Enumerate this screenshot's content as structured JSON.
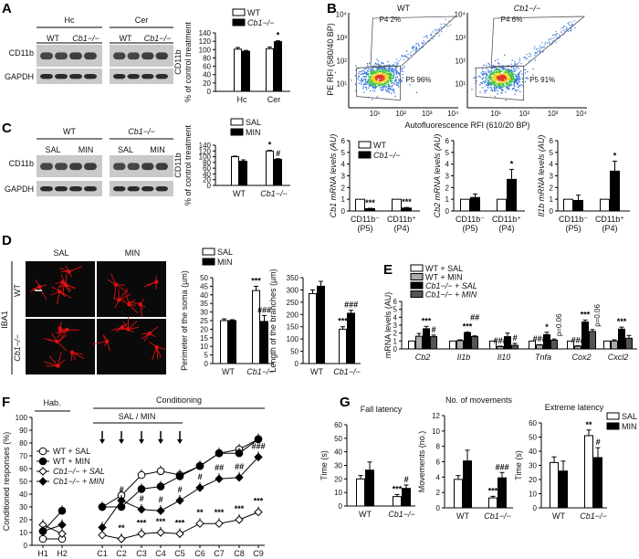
{
  "panels": {
    "A": "A",
    "B": "B",
    "C": "C",
    "D": "D",
    "E": "E",
    "F": "F",
    "G": "G"
  },
  "blot_A": {
    "groups": [
      "Hc",
      "Cer"
    ],
    "genotypes": [
      "WT",
      "Cb1−/−",
      "WT",
      "Cb1−/−"
    ],
    "rows": [
      "CD11b",
      "GAPDH"
    ]
  },
  "blot_C": {
    "groups": [
      "WT",
      "Cb1−/−"
    ],
    "treatments": [
      "SAL",
      "MIN",
      "SAL",
      "MIN"
    ],
    "rows": [
      "CD11b",
      "GAPDH"
    ]
  },
  "flow_B": {
    "plots": [
      {
        "title": "WT",
        "p4": "P4 2%",
        "p5": "P5 96%"
      },
      {
        "title": "Cb1−/−",
        "p4": "P4 6%",
        "p5": "P5 91%"
      }
    ],
    "ylabel": "PE RFI (580/40 BP)",
    "xlabel": "Autofluorescence RFI (610/20 BP)",
    "ticks": [
      "10¹",
      "10²",
      "10³",
      "10⁴"
    ]
  },
  "micro_D": {
    "cols": [
      "SAL",
      "MIN"
    ],
    "rows": [
      "WT",
      "Cb1−/−"
    ],
    "stain": "IBA1",
    "colors": {
      "signal": "#e01010",
      "background": "#0a0a0a"
    }
  },
  "f_labels": {
    "hab": "Hab.",
    "conditioning": "Conditioning",
    "treatment": "SAL / MIN"
  },
  "chart_data": [
    {
      "id": "A",
      "type": "bar",
      "ylabel": [
        "CD11b",
        "% of control treatment"
      ],
      "ylim": [
        0,
        140
      ],
      "ytick": 20,
      "categories": [
        "Hc",
        "Cer"
      ],
      "series": [
        {
          "name": "WT",
          "values": [
            101,
            102
          ],
          "errors": [
            4,
            4
          ],
          "fill": "#ffffff"
        },
        {
          "name": "Cb1−/−",
          "values": [
            96,
            119
          ],
          "errors": [
            2,
            2
          ],
          "fill": "#000000"
        }
      ],
      "annotations": [
        {
          "cat": 1,
          "series": 1,
          "text": "*"
        }
      ],
      "legend": "top"
    },
    {
      "id": "C",
      "type": "bar",
      "ylabel": [
        "CD11b",
        "% of control treatment"
      ],
      "ylim": [
        0,
        140
      ],
      "ytick": 20,
      "categories": [
        "WT",
        "Cb1−/−"
      ],
      "series": [
        {
          "name": "SAL",
          "values": [
            100,
            120
          ],
          "errors": [
            2,
            2
          ],
          "fill": "#ffffff"
        },
        {
          "name": "MIN",
          "values": [
            84,
            91
          ],
          "errors": [
            5,
            2
          ],
          "fill": "#000000"
        }
      ],
      "annotations": [
        {
          "cat": 1,
          "series": 0,
          "text": "*"
        },
        {
          "cat": 1,
          "series": 1,
          "text": "#"
        }
      ],
      "legend": "top"
    },
    {
      "id": "B-Cb1",
      "type": "bar",
      "ylabel": [
        "Cb1 mRNA levels (AU)"
      ],
      "ylim": [
        0,
        6
      ],
      "ytick": 1,
      "categories": [
        "CD11b⁻\n(P5)",
        "CD11b⁺\n(P4)"
      ],
      "series": [
        {
          "name": "WT",
          "values": [
            1,
            1
          ],
          "errors": [
            0,
            0
          ],
          "fill": "#ffffff"
        },
        {
          "name": "Cb1−/−",
          "values": [
            0.2,
            0.25
          ],
          "errors": [
            0.03,
            0.05
          ],
          "fill": "#000000"
        }
      ],
      "annotations": [
        {
          "cat": 0,
          "series": 1,
          "text": "***"
        },
        {
          "cat": 1,
          "series": 1,
          "text": "***"
        }
      ],
      "legend": "top-left"
    },
    {
      "id": "B-Cb2",
      "type": "bar",
      "ylabel": [
        "Cb2 mRNA levels (AU)"
      ],
      "ylim": [
        0,
        6
      ],
      "ytick": 1,
      "categories": [
        "CD11b⁻\n(P5)",
        "CD11b⁺\n(P4)"
      ],
      "series": [
        {
          "name": "WT",
          "values": [
            1,
            1
          ],
          "errors": [
            0,
            0
          ],
          "fill": "#ffffff"
        },
        {
          "name": "Cb1−/−",
          "values": [
            1.15,
            2.7
          ],
          "errors": [
            0.3,
            0.85
          ],
          "fill": "#000000"
        }
      ],
      "annotations": [
        {
          "cat": 1,
          "series": 1,
          "text": "*"
        }
      ]
    },
    {
      "id": "B-Il1b",
      "type": "bar",
      "ylabel": [
        "Il1b mRNA levels (AU)"
      ],
      "ylim": [
        0,
        6
      ],
      "ytick": 1,
      "categories": [
        "CD11b⁻\n(P5)",
        "CD11b⁺\n(P4)"
      ],
      "series": [
        {
          "name": "WT",
          "values": [
            1,
            1
          ],
          "errors": [
            0,
            0
          ],
          "fill": "#ffffff"
        },
        {
          "name": "Cb1−/−",
          "values": [
            0.9,
            3.4
          ],
          "errors": [
            0.45,
            0.85
          ],
          "fill": "#000000"
        }
      ],
      "annotations": [
        {
          "cat": 1,
          "series": 1,
          "text": "*"
        }
      ]
    },
    {
      "id": "D-soma",
      "type": "bar",
      "ylabel": [
        "Perimeter of the soma (µm)"
      ],
      "ylim": [
        0,
        50
      ],
      "ytick": 5,
      "categories": [
        "WT",
        "Cb1−/−"
      ],
      "series": [
        {
          "name": "SAL",
          "values": [
            25,
            42.5
          ],
          "errors": [
            1,
            2.5
          ],
          "fill": "#ffffff"
        },
        {
          "name": "MIN",
          "values": [
            25,
            24.5
          ],
          "errors": [
            0.5,
            3.5
          ],
          "fill": "#000000"
        }
      ],
      "annotations": [
        {
          "cat": 1,
          "series": 0,
          "text": "***"
        },
        {
          "cat": 1,
          "series": 1,
          "text": "###"
        }
      ],
      "legend": "top"
    },
    {
      "id": "D-branches",
      "type": "bar",
      "ylabel": [
        "Length of the branches (µm)"
      ],
      "ylim": [
        0,
        350
      ],
      "ytick": 50,
      "categories": [
        "WT",
        "Cb1−/−"
      ],
      "series": [
        {
          "name": "SAL",
          "values": [
            285,
            140
          ],
          "errors": [
            15,
            10
          ],
          "fill": "#ffffff"
        },
        {
          "name": "MIN",
          "values": [
            315,
            205
          ],
          "errors": [
            20,
            12
          ],
          "fill": "#000000"
        }
      ],
      "annotations": [
        {
          "cat": 1,
          "series": 0,
          "text": "***"
        },
        {
          "cat": 1,
          "series": 1,
          "text": "###"
        }
      ]
    },
    {
      "id": "E",
      "type": "bar",
      "ylabel": [
        "mRNA levels (AU)"
      ],
      "ylim": [
        0,
        6
      ],
      "ytick": 1,
      "categories": [
        "Cb2",
        "Il1b",
        "Il10",
        "Tnfa",
        "Cox2",
        "Cxcl2"
      ],
      "series": [
        {
          "name": "WT + SAL",
          "values": [
            1,
            1,
            1,
            1,
            1,
            1
          ],
          "errors": [
            0,
            0,
            0,
            0,
            0,
            0
          ],
          "fill": "#ffffff"
        },
        {
          "name": "WT + MIN",
          "values": [
            1.6,
            1.05,
            0.3,
            0.5,
            0.35,
            1.0
          ],
          "errors": [
            0.35,
            0.1,
            0.05,
            0.05,
            0.05,
            0.15
          ],
          "fill": "#aaaaaa"
        },
        {
          "name": "Cb1−/− + SAL",
          "values": [
            2.55,
            2.05,
            1.55,
            1.8,
            3.4,
            2.5
          ],
          "errors": [
            0.3,
            0.08,
            0.45,
            0.3,
            0.25,
            0.25
          ],
          "fill": "#000000"
        },
        {
          "name": "Cb1−/− + MIN",
          "values": [
            1.55,
            1.55,
            0.45,
            1.1,
            2.2,
            1.35
          ],
          "errors": [
            0.2,
            0.1,
            0.25,
            0.15,
            0.25,
            0.35
          ],
          "fill": "#555555"
        }
      ],
      "annotations": [
        {
          "cat": 0,
          "series": 2,
          "text": "***"
        },
        {
          "cat": 0,
          "series": 3,
          "text": "#"
        },
        {
          "cat": 1,
          "series": 2,
          "text": "***"
        },
        {
          "cat": 1,
          "series": 3,
          "text": "##"
        },
        {
          "cat": 2,
          "series": 1,
          "text": "###"
        },
        {
          "cat": 2,
          "series": 3,
          "text": "#"
        },
        {
          "cat": 3,
          "series": 1,
          "text": "###"
        },
        {
          "cat": 3,
          "series": 2,
          "text": "*"
        },
        {
          "cat": 3,
          "series": 3,
          "text": "p=0.06"
        },
        {
          "cat": 4,
          "series": 1,
          "text": "###"
        },
        {
          "cat": 4,
          "series": 2,
          "text": "***"
        },
        {
          "cat": 4,
          "series": 3,
          "text": "p=0.06"
        },
        {
          "cat": 5,
          "series": 2,
          "text": "***"
        }
      ],
      "legend": "top-left"
    },
    {
      "id": "F",
      "type": "line",
      "ylabel": "Conditioned responses (%)",
      "ylim": [
        0,
        100
      ],
      "ytick": 10,
      "x": [
        "H1",
        "H2",
        "C1",
        "C2",
        "C3",
        "C4",
        "C5",
        "C6",
        "C7",
        "C8",
        "C9"
      ],
      "series": [
        {
          "name": "WT + SAL",
          "marker": "circle-open",
          "values": [
            5,
            5,
            30,
            39,
            55,
            58,
            55,
            62,
            72,
            75,
            83
          ]
        },
        {
          "name": "WT + MIN",
          "marker": "circle-filled",
          "values": [
            11,
            27,
            30,
            30,
            44,
            46,
            54,
            62,
            72,
            72,
            83
          ]
        },
        {
          "name": "Cb1−/− + SAL",
          "marker": "diamond-open",
          "values": [
            16,
            9,
            8,
            5,
            9,
            10,
            9,
            17,
            17,
            20,
            26
          ]
        },
        {
          "name": "Cb1−/− + MIN",
          "marker": "diamond-filled",
          "values": [
            11,
            16,
            14,
            35,
            28,
            27,
            35,
            45,
            52,
            53,
            69
          ]
        }
      ],
      "annotations": [
        {
          "x": "C2",
          "series": 2,
          "text": "**"
        },
        {
          "x": "C3",
          "series": 2,
          "text": "***"
        },
        {
          "x": "C4",
          "series": 2,
          "text": "***"
        },
        {
          "x": "C5",
          "series": 2,
          "text": "***"
        },
        {
          "x": "C6",
          "series": 2,
          "text": "**"
        },
        {
          "x": "C7",
          "series": 2,
          "text": "***"
        },
        {
          "x": "C8",
          "series": 2,
          "text": "***"
        },
        {
          "x": "C9",
          "series": 2,
          "text": "***"
        },
        {
          "x": "C2",
          "series": 3,
          "text": "#"
        },
        {
          "x": "C3",
          "series": 3,
          "text": "#"
        },
        {
          "x": "C4",
          "series": 3,
          "text": "#"
        },
        {
          "x": "C5",
          "series": 3,
          "text": "#"
        },
        {
          "x": "C6",
          "series": 3,
          "text": "#"
        },
        {
          "x": "C7",
          "series": 3,
          "text": "##"
        },
        {
          "x": "C8",
          "series": 3,
          "text": "##"
        },
        {
          "x": "C9",
          "series": 3,
          "text": "###"
        }
      ],
      "injection_days": [
        "C1",
        "C2",
        "C3",
        "C4",
        "C5"
      ],
      "legend": "left"
    },
    {
      "id": "G-fall",
      "type": "bar",
      "title": "Fall latency",
      "ylabel": [
        "Time (s)"
      ],
      "ylim": [
        0,
        60
      ],
      "ytick": 10,
      "categories": [
        "WT",
        "Cb1−/−"
      ],
      "series": [
        {
          "name": "SAL",
          "values": [
            20,
            7
          ],
          "errors": [
            2.5,
            1.5
          ],
          "fill": "#ffffff"
        },
        {
          "name": "MIN",
          "values": [
            26.5,
            13
          ],
          "errors": [
            6,
            2.5
          ],
          "fill": "#000000"
        }
      ],
      "annotations": [
        {
          "cat": 1,
          "series": 0,
          "text": "***"
        },
        {
          "cat": 1,
          "series": 1,
          "text": "#"
        }
      ]
    },
    {
      "id": "G-moves",
      "type": "bar",
      "title": "No. of movements",
      "ylabel": [
        "Movements (no.)"
      ],
      "ylim": [
        0,
        12
      ],
      "ytick": 2,
      "categories": [
        "WT",
        "Cb1−/−"
      ],
      "series": [
        {
          "name": "SAL",
          "values": [
            3.7,
            1.3
          ],
          "errors": [
            0.5,
            0.2
          ],
          "fill": "#ffffff"
        },
        {
          "name": "MIN",
          "values": [
            6.1,
            3.9
          ],
          "errors": [
            1.4,
            0.7
          ],
          "fill": "#000000"
        }
      ],
      "annotations": [
        {
          "cat": 1,
          "series": 0,
          "text": "***"
        },
        {
          "cat": 1,
          "series": 1,
          "text": "###"
        }
      ]
    },
    {
      "id": "G-extreme",
      "type": "bar",
      "title": "Extreme latency",
      "ylabel": [
        "Time (s)"
      ],
      "ylim": [
        0,
        60
      ],
      "ytick": 10,
      "categories": [
        "WT",
        "Cb1−/−"
      ],
      "series": [
        {
          "name": "SAL",
          "values": [
            32,
            51
          ],
          "errors": [
            4,
            4
          ],
          "fill": "#ffffff"
        },
        {
          "name": "MIN",
          "values": [
            26,
            35.5
          ],
          "errors": [
            7,
            7
          ],
          "fill": "#000000"
        }
      ],
      "annotations": [
        {
          "cat": 1,
          "series": 0,
          "text": "**"
        },
        {
          "cat": 1,
          "series": 1,
          "text": "#"
        }
      ],
      "legend": "top-right"
    }
  ]
}
